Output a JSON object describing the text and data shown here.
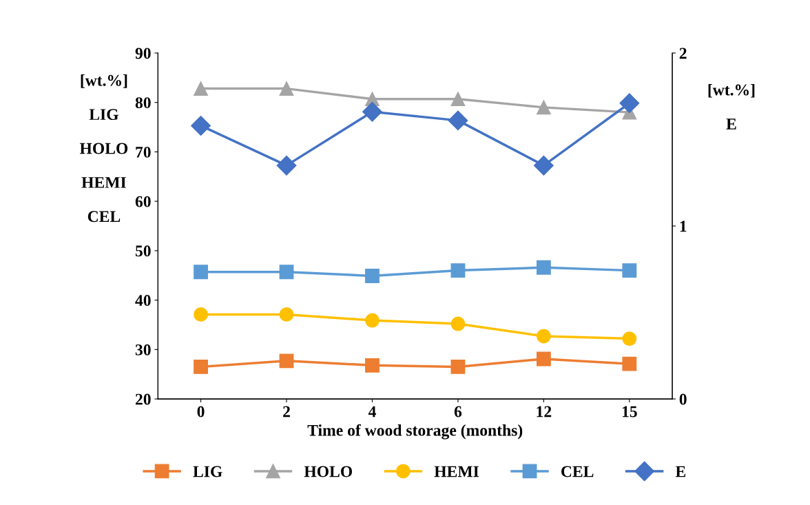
{
  "chart_data": {
    "type": "line",
    "xlabel": "Time of wood storage (months)",
    "ylabel": "[wt.%]\n\nLIG\n\nHOLO\n\nHEMI\n\nCEL",
    "y2label": "[wt.%]\n\nE",
    "categories": [
      "0",
      "2",
      "4",
      "6",
      "12",
      "15"
    ],
    "series": [
      {
        "name": "LIG",
        "color": "#ed7d31",
        "marker": "square",
        "values": [
          26.5,
          27.7,
          26.8,
          26.5,
          28.1,
          27.1
        ]
      },
      {
        "name": "HOLO",
        "color": "#a5a5a5",
        "marker": "triangle",
        "values": [
          82.8,
          82.8,
          80.7,
          80.7,
          79.0,
          78.0
        ]
      },
      {
        "name": "HEMI",
        "color": "#ffc000",
        "marker": "circle",
        "values": [
          37.1,
          37.1,
          35.9,
          35.2,
          32.7,
          32.2
        ]
      },
      {
        "name": "CEL",
        "color": "#5b9bd5",
        "marker": "square",
        "values": [
          45.7,
          45.7,
          44.9,
          46.0,
          46.6,
          46.0
        ]
      },
      {
        "name": "E",
        "color": "#4472c4",
        "marker": "diamond",
        "axis": "y2",
        "values": [
          1.58,
          1.35,
          1.66,
          1.61,
          1.35,
          1.71
        ]
      }
    ],
    "ylim": [
      20,
      90
    ],
    "yticks": [
      20,
      30,
      40,
      50,
      60,
      70,
      80,
      90
    ],
    "y2lim": [
      0,
      2
    ],
    "y2ticks": [
      0,
      1,
      2
    ],
    "grid": false,
    "legend": "bottom"
  }
}
